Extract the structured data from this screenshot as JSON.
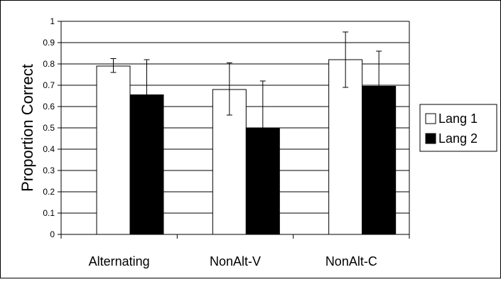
{
  "chart_data": {
    "type": "bar",
    "categories": [
      "Alternating",
      "NonAlt-V",
      "NonAlt-C"
    ],
    "series": [
      {
        "name": "Lang 1",
        "values": [
          0.79,
          0.68,
          0.82
        ],
        "err_low": [
          0.03,
          0.12,
          0.13
        ],
        "err_high": [
          0.035,
          0.125,
          0.13
        ]
      },
      {
        "name": "Lang 2",
        "values": [
          0.655,
          0.5,
          0.695
        ],
        "err_low": [
          0.0,
          0.0,
          0.0
        ],
        "err_high": [
          0.165,
          0.22,
          0.165
        ]
      }
    ],
    "title": "",
    "xlabel": "",
    "ylabel": "Proportion Correct",
    "ylim": [
      0,
      1
    ],
    "yticks": [
      "0",
      "0.1",
      "0.2",
      "0.3",
      "0.4",
      "0.5",
      "0.6",
      "0.7",
      "0.8",
      "0.9",
      "1"
    ],
    "grid": "horizontal",
    "legend_position": "right",
    "colors": {
      "Lang 1": "#ffffff",
      "Lang 2": "#000000",
      "gridline": "#000000",
      "border": "#000000"
    }
  }
}
